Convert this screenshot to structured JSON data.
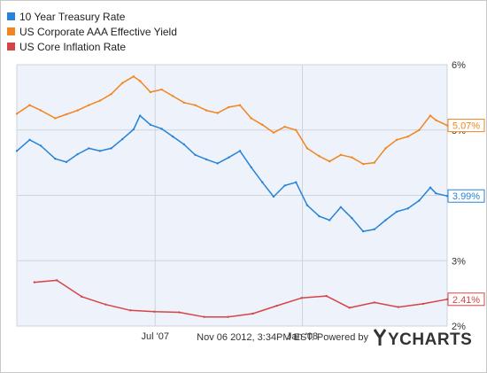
{
  "chart_data": {
    "type": "line",
    "x_ticks": [
      "Jul '07",
      "Jan '08"
    ],
    "y_ticks": [
      "2%",
      "3%",
      "4%",
      "5%",
      "6%"
    ],
    "ylim": [
      2,
      6
    ],
    "xlim": [
      "2007-01-09",
      "2008-06-30"
    ],
    "grid": true,
    "legend_position": "top-left",
    "series": [
      {
        "name": "10 Year Treasury Rate",
        "color": "#2683d9",
        "end_label": "3.99%",
        "dates": [
          "2007-01-09",
          "2007-01-25",
          "2007-02-08",
          "2007-02-26",
          "2007-03-12",
          "2007-03-26",
          "2007-04-09",
          "2007-04-23",
          "2007-05-07",
          "2007-05-21",
          "2007-06-04",
          "2007-06-12",
          "2007-06-25",
          "2007-07-09",
          "2007-07-23",
          "2007-08-06",
          "2007-08-20",
          "2007-09-03",
          "2007-09-17",
          "2007-10-01",
          "2007-10-15",
          "2007-10-29",
          "2007-11-12",
          "2007-11-26",
          "2007-12-10",
          "2007-12-24",
          "2008-01-07",
          "2008-01-22",
          "2008-02-04",
          "2008-02-18",
          "2008-03-03",
          "2008-03-17",
          "2008-03-31",
          "2008-04-14",
          "2008-04-28",
          "2008-05-12",
          "2008-05-26",
          "2008-06-09",
          "2008-06-16",
          "2008-06-30"
        ],
        "values": [
          4.68,
          4.85,
          4.76,
          4.56,
          4.51,
          4.63,
          4.72,
          4.68,
          4.72,
          4.86,
          5.01,
          5.22,
          5.08,
          5.02,
          4.9,
          4.78,
          4.62,
          4.55,
          4.49,
          4.58,
          4.68,
          4.43,
          4.2,
          3.98,
          4.15,
          4.2,
          3.85,
          3.68,
          3.62,
          3.82,
          3.65,
          3.45,
          3.48,
          3.62,
          3.75,
          3.8,
          3.92,
          4.12,
          4.03,
          3.99
        ]
      },
      {
        "name": "US Corporate AAA Effective Yield",
        "color": "#f2851f",
        "end_label": "5.07%",
        "dates": [
          "2007-01-09",
          "2007-01-25",
          "2007-02-08",
          "2007-02-26",
          "2007-03-12",
          "2007-03-26",
          "2007-04-09",
          "2007-04-23",
          "2007-05-07",
          "2007-05-21",
          "2007-06-04",
          "2007-06-12",
          "2007-06-25",
          "2007-07-09",
          "2007-07-23",
          "2007-08-06",
          "2007-08-20",
          "2007-09-03",
          "2007-09-17",
          "2007-10-01",
          "2007-10-15",
          "2007-10-29",
          "2007-11-12",
          "2007-11-26",
          "2007-12-10",
          "2007-12-24",
          "2008-01-07",
          "2008-01-22",
          "2008-02-04",
          "2008-02-18",
          "2008-03-03",
          "2008-03-17",
          "2008-03-31",
          "2008-04-14",
          "2008-04-28",
          "2008-05-12",
          "2008-05-26",
          "2008-06-09",
          "2008-06-16",
          "2008-06-30"
        ],
        "values": [
          5.25,
          5.38,
          5.3,
          5.18,
          5.24,
          5.3,
          5.38,
          5.45,
          5.55,
          5.72,
          5.82,
          5.75,
          5.58,
          5.62,
          5.52,
          5.42,
          5.38,
          5.3,
          5.26,
          5.35,
          5.38,
          5.18,
          5.08,
          4.96,
          5.05,
          5.0,
          4.72,
          4.6,
          4.52,
          4.62,
          4.58,
          4.48,
          4.5,
          4.72,
          4.85,
          4.9,
          5.0,
          5.22,
          5.15,
          5.07
        ]
      },
      {
        "name": "US Core Inflation Rate",
        "color": "#d64545",
        "end_label": "2.41%",
        "dates": [
          "2007-01-31",
          "2007-02-28",
          "2007-03-31",
          "2007-04-30",
          "2007-05-31",
          "2007-06-30",
          "2007-07-31",
          "2007-08-31",
          "2007-09-30",
          "2007-10-31",
          "2007-11-30",
          "2007-12-31",
          "2008-01-31",
          "2008-02-29",
          "2008-03-31",
          "2008-04-30",
          "2008-05-31",
          "2008-06-30"
        ],
        "values": [
          2.67,
          2.7,
          2.45,
          2.33,
          2.24,
          2.22,
          2.21,
          2.14,
          2.14,
          2.19,
          2.31,
          2.43,
          2.46,
          2.28,
          2.36,
          2.29,
          2.34,
          2.41
        ]
      }
    ]
  },
  "legend": {
    "items": [
      {
        "label": "10 Year Treasury Rate",
        "color": "#2683d9"
      },
      {
        "label": "US Corporate AAA Effective Yield",
        "color": "#f2851f"
      },
      {
        "label": "US Core Inflation Rate",
        "color": "#d64545"
      }
    ]
  },
  "footer": {
    "timestamp": "Nov 06 2012, 3:34PM EST.",
    "powered_by": "Powered by",
    "brand": "YCHARTS",
    "brand_color": "#333333"
  },
  "colors": {
    "plot_background": "#eef2fb",
    "grid": "#cfd3da"
  }
}
